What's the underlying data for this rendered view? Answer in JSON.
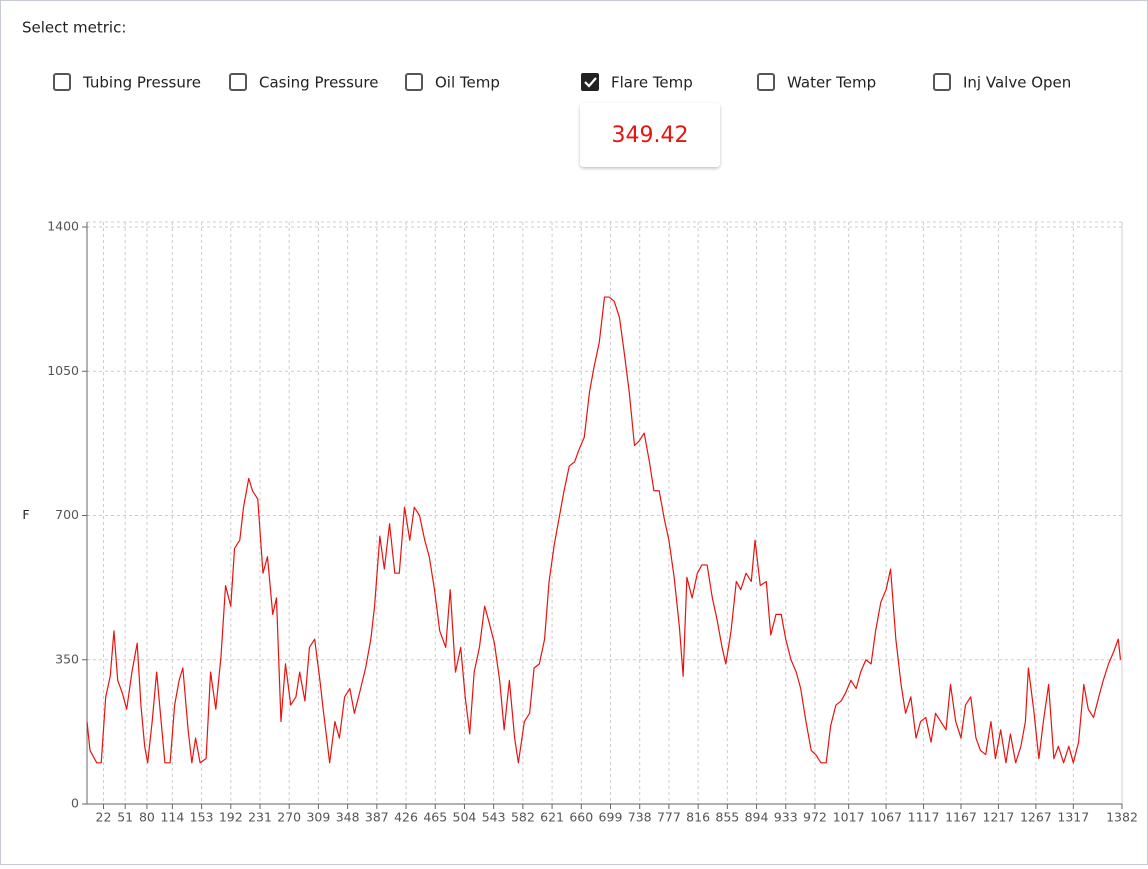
{
  "ui": {
    "prompt": "Select metric:",
    "metrics": [
      {
        "label": "Tubing Pressure",
        "checked": false
      },
      {
        "label": "Casing Pressure",
        "checked": false
      },
      {
        "label": "Oil Temp",
        "checked": false
      },
      {
        "label": "Flare Temp",
        "checked": true
      },
      {
        "label": "Water Temp",
        "checked": false
      },
      {
        "label": "Inj Valve Open",
        "checked": false
      }
    ],
    "current_value": "349.42"
  },
  "chart_data": {
    "type": "line",
    "ylabel": "F",
    "color": "#e8130f",
    "grid": true,
    "xlim": [
      0,
      1382
    ],
    "ylim": [
      0,
      1400
    ],
    "yticks": [
      0,
      350,
      700,
      1050,
      1400
    ],
    "xticks": [
      22,
      51,
      80,
      114,
      153,
      192,
      231,
      270,
      309,
      348,
      387,
      426,
      465,
      504,
      543,
      582,
      621,
      660,
      699,
      738,
      777,
      816,
      855,
      894,
      933,
      972,
      1017,
      1067,
      1117,
      1167,
      1217,
      1267,
      1317,
      1382
    ],
    "x": [
      0,
      4,
      13,
      19,
      25,
      31,
      36,
      41,
      47,
      53,
      60,
      67,
      72,
      77,
      81,
      87,
      93,
      99,
      104,
      111,
      117,
      123,
      128,
      135,
      140,
      145,
      151,
      159,
      165,
      172,
      179,
      185,
      192,
      197,
      204,
      209,
      216,
      221,
      228,
      235,
      241,
      248,
      253,
      259,
      265,
      272,
      279,
      284,
      291,
      297,
      304,
      311,
      316,
      324,
      331,
      337,
      344,
      351,
      357,
      364,
      372,
      379,
      384,
      391,
      397,
      404,
      411,
      417,
      424,
      431,
      437,
      444,
      451,
      457,
      464,
      471,
      479,
      485,
      492,
      499,
      505,
      511,
      517,
      524,
      531,
      537,
      544,
      551,
      557,
      564,
      571,
      576,
      584,
      591,
      597,
      604,
      611,
      617,
      624,
      631,
      637,
      644,
      651,
      657,
      664,
      671,
      677,
      684,
      691,
      697,
      704,
      711,
      717,
      724,
      731,
      737,
      744,
      751,
      757,
      764,
      771,
      777,
      784,
      791,
      796,
      801,
      808,
      815,
      821,
      828,
      835,
      841,
      848,
      853,
      860,
      867,
      873,
      880,
      887,
      892,
      899,
      907,
      913,
      920,
      927,
      933,
      940,
      947,
      953,
      960,
      967,
      973,
      980,
      987,
      993,
      1000,
      1007,
      1013,
      1020,
      1027,
      1033,
      1040,
      1047,
      1053,
      1060,
      1067,
      1073,
      1080,
      1087,
      1093,
      1100,
      1107,
      1113,
      1120,
      1127,
      1133,
      1140,
      1147,
      1153,
      1160,
      1167,
      1173,
      1180,
      1187,
      1193,
      1200,
      1207,
      1213,
      1220,
      1227,
      1233,
      1240,
      1247,
      1253,
      1257,
      1264,
      1271,
      1277,
      1284,
      1291,
      1297,
      1304,
      1311,
      1317,
      1324,
      1331,
      1337,
      1344,
      1351,
      1357,
      1364,
      1371,
      1377,
      1380
    ],
    "values": [
      200,
      130,
      100,
      100,
      260,
      310,
      420,
      300,
      270,
      230,
      320,
      390,
      240,
      140,
      100,
      200,
      320,
      200,
      100,
      100,
      240,
      300,
      330,
      180,
      100,
      160,
      100,
      110,
      320,
      230,
      360,
      530,
      480,
      620,
      640,
      720,
      790,
      760,
      740,
      560,
      600,
      460,
      500,
      200,
      340,
      240,
      260,
      320,
      250,
      380,
      400,
      300,
      220,
      100,
      200,
      160,
      260,
      280,
      220,
      270,
      330,
      400,
      480,
      650,
      570,
      680,
      560,
      560,
      720,
      640,
      720,
      700,
      640,
      600,
      520,
      420,
      380,
      520,
      320,
      380,
      260,
      170,
      320,
      380,
      480,
      440,
      390,
      300,
      180,
      300,
      160,
      100,
      200,
      220,
      330,
      340,
      400,
      540,
      630,
      700,
      760,
      820,
      830,
      860,
      890,
      1000,
      1060,
      1120,
      1230,
      1230,
      1220,
      1180,
      1100,
      1000,
      870,
      880,
      900,
      830,
      760,
      760,
      690,
      640,
      550,
      430,
      310,
      550,
      500,
      560,
      580,
      580,
      500,
      450,
      380,
      340,
      420,
      540,
      520,
      560,
      540,
      640,
      530,
      540,
      410,
      460,
      460,
      400,
      350,
      320,
      280,
      200,
      130,
      120,
      100,
      100,
      190,
      240,
      250,
      270,
      300,
      280,
      320,
      350,
      340,
      420,
      490,
      520,
      570,
      400,
      290,
      220,
      260,
      160,
      200,
      210,
      150,
      220,
      200,
      180,
      290,
      200,
      160,
      240,
      260,
      160,
      130,
      120,
      200,
      110,
      180,
      100,
      170,
      100,
      140,
      200,
      330,
      230,
      110,
      200,
      290,
      110,
      140,
      100,
      140,
      100,
      150,
      290,
      230,
      210,
      260,
      300,
      340,
      370,
      400,
      350
    ]
  }
}
